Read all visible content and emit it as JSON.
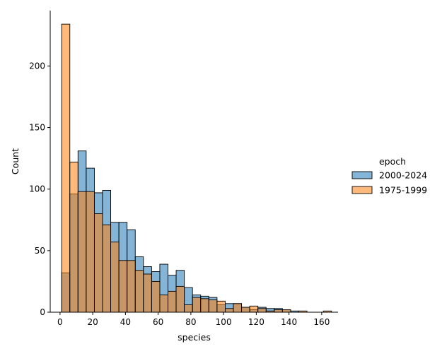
{
  "chart_data": {
    "type": "bar",
    "subtype": "overlapping-histogram",
    "xlabel": "species",
    "ylabel": "Count",
    "xlim": [
      -6,
      170
    ],
    "ylim": [
      0,
      245
    ],
    "x_ticks": [
      0,
      20,
      40,
      60,
      80,
      100,
      120,
      140,
      160
    ],
    "y_ticks": [
      0,
      50,
      100,
      150,
      200
    ],
    "bin_width": 5,
    "bin_start": 1,
    "grid": false,
    "legend": {
      "title": "epoch",
      "placement": "right"
    },
    "series": [
      {
        "name": "2000-2024",
        "color": "#1f77b4",
        "values": [
          32,
          96,
          131,
          117,
          97,
          99,
          73,
          73,
          67,
          45,
          37,
          33,
          39,
          30,
          34,
          20,
          14,
          13,
          12,
          6,
          7,
          7,
          4,
          2,
          4,
          3,
          3,
          2,
          1,
          0,
          0
        ]
      },
      {
        "name": "1975-1999",
        "color": "#ff7f0e",
        "values": [
          234,
          122,
          98,
          98,
          80,
          71,
          57,
          42,
          42,
          34,
          31,
          25,
          14,
          17,
          21,
          6,
          12,
          11,
          10,
          9,
          3,
          7,
          4,
          5,
          3,
          1,
          2,
          2,
          0,
          1,
          0,
          0,
          1
        ]
      }
    ]
  }
}
